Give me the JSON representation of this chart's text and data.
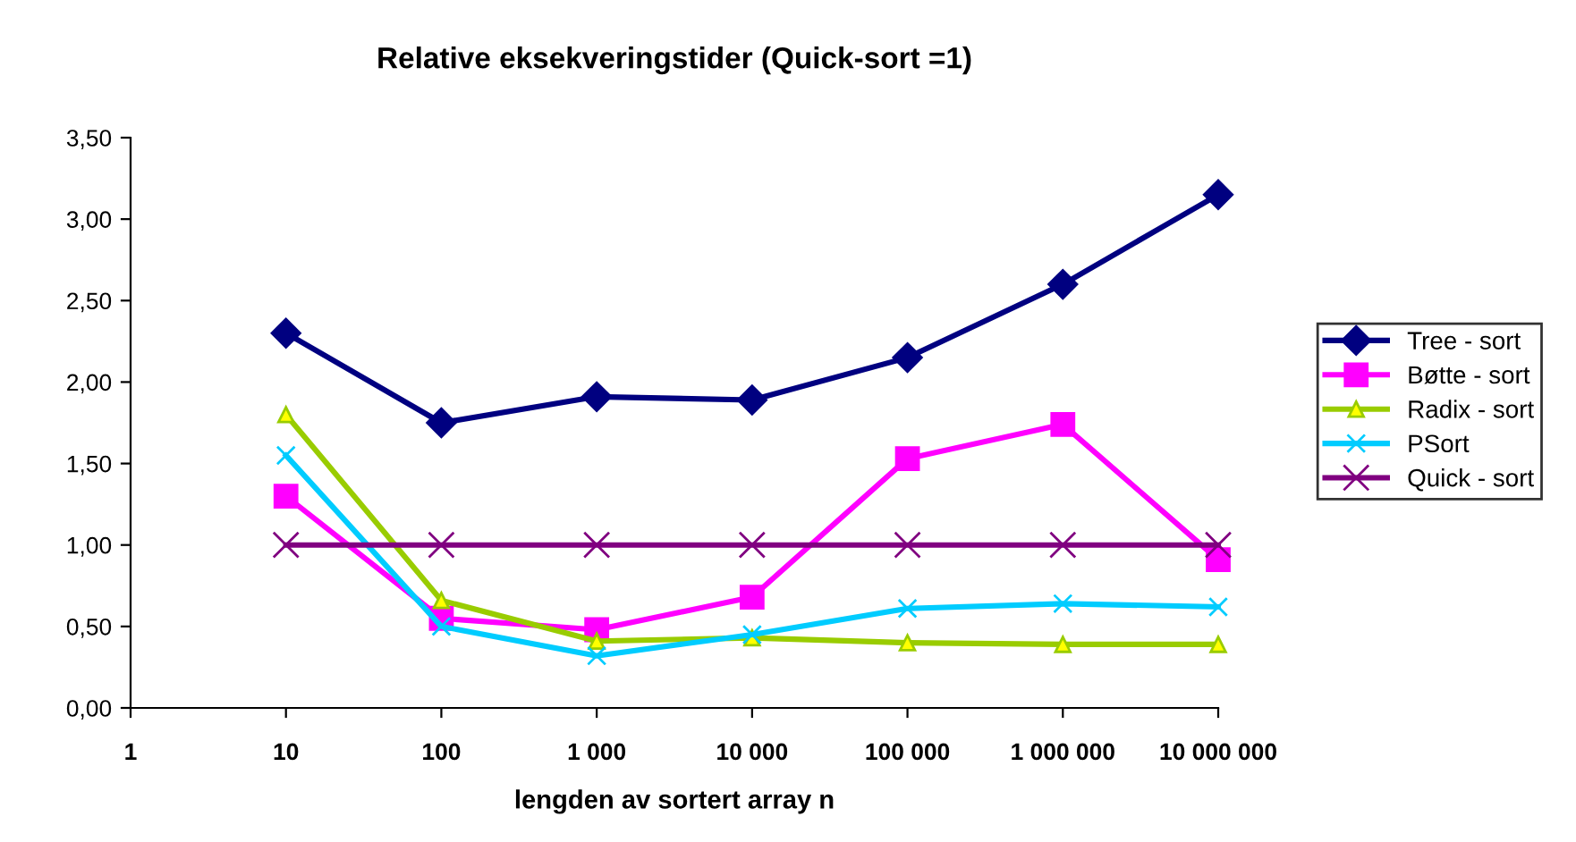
{
  "chart_data": {
    "type": "line",
    "title": "Relative eksekveringstider (Quick-sort =1)",
    "xlabel": "lengden av sortert array n",
    "log": "x",
    "x": [
      10,
      100,
      1000,
      10000,
      100000,
      1000000,
      10000000
    ],
    "xlim": [
      1,
      10000000
    ],
    "xticks": [
      1,
      10,
      100,
      {
        "value": 1000,
        "label": "1 000"
      },
      {
        "value": 10000,
        "label": "10 000"
      },
      {
        "value": 100000,
        "label": "100 000"
      },
      {
        "value": 1000000,
        "label": "1 000 000"
      },
      {
        "value": 10000000,
        "label": "10 000 000"
      }
    ],
    "ylim": [
      0,
      3.5
    ],
    "yticks": [
      {
        "value": 0,
        "label": "0,00"
      },
      {
        "value": 0.5,
        "label": "0,50"
      },
      {
        "value": 1,
        "label": "1,00"
      },
      {
        "value": 1.5,
        "label": "1,50"
      },
      {
        "value": 2,
        "label": "2,00"
      },
      {
        "value": 2.5,
        "label": "2,50"
      },
      {
        "value": 3,
        "label": "3,00"
      },
      {
        "value": 3.5,
        "label": "3,50"
      }
    ],
    "grid": false,
    "legend": "right",
    "series": [
      {
        "name": "Tree - sort",
        "color": "#000080",
        "marker": "diamond",
        "values": [
          2.3,
          1.75,
          1.91,
          1.89,
          2.15,
          2.6,
          3.15
        ]
      },
      {
        "name": "Bøtte - sort",
        "color": "#ff00ff",
        "marker": "square",
        "values": [
          1.3,
          0.55,
          0.48,
          0.68,
          1.53,
          1.74,
          0.91
        ]
      },
      {
        "name": "Radix - sort",
        "color": "#99cc00",
        "marker": "triangle",
        "values": [
          1.8,
          0.66,
          0.41,
          0.43,
          0.4,
          0.39,
          0.39
        ]
      },
      {
        "name": "PSort",
        "color": "#00ccff",
        "marker": "cross",
        "values": [
          1.55,
          0.5,
          0.32,
          0.45,
          0.61,
          0.64,
          0.62
        ]
      },
      {
        "name": "Quick - sort",
        "color": "#800080",
        "marker": "cross",
        "values": [
          1.0,
          1.0,
          1.0,
          1.0,
          1.0,
          1.0,
          1.0
        ]
      }
    ]
  }
}
